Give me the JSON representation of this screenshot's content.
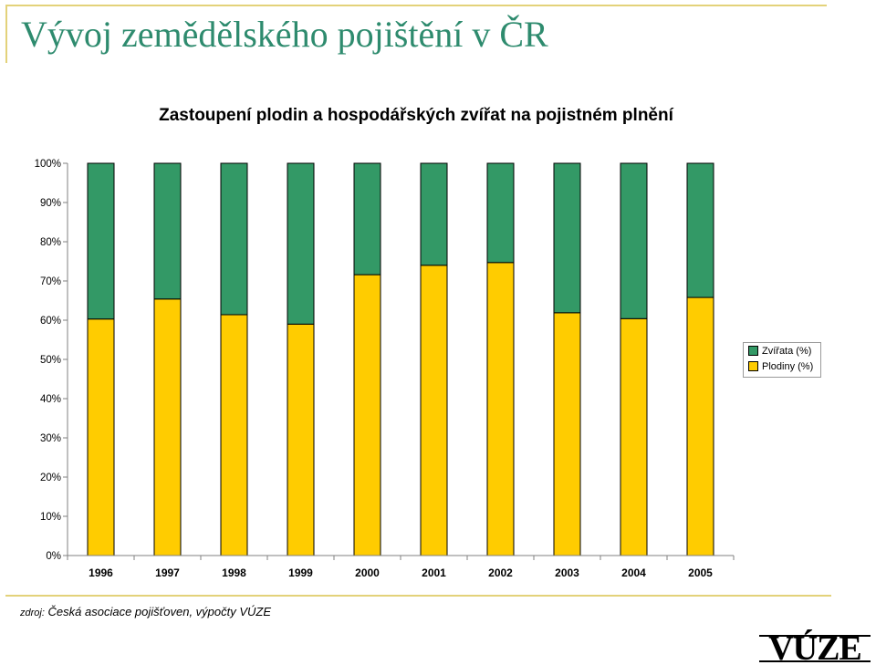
{
  "slide": {
    "title": "Vývoj zemědělského pojištění v ČR"
  },
  "source": {
    "label": "zdroj:",
    "text": "Česká asociace pojišťoven, výpočty VÚZE"
  },
  "logo": {
    "text": "VÚZE"
  },
  "colors": {
    "accent_rule": "#e3d27a",
    "title": "#2e8b6e",
    "zvirata": "#339966",
    "plodiny": "#ffcc00"
  },
  "chart_data": {
    "type": "bar",
    "stacked": true,
    "title": "Zastoupení plodin a hospodářských zvířat na pojistném plnění",
    "categories": [
      "1996",
      "1997",
      "1998",
      "1999",
      "2000",
      "2001",
      "2002",
      "2003",
      "2004",
      "2005"
    ],
    "y_ticks": [
      "0%",
      "10%",
      "20%",
      "30%",
      "40%",
      "50%",
      "60%",
      "70%",
      "80%",
      "90%",
      "100%"
    ],
    "ylim": [
      0,
      100
    ],
    "grid": false,
    "legend_position": "right",
    "series": [
      {
        "name": "Plodiny (%)",
        "color": "#ffcc00",
        "values": [
          60.3,
          65.4,
          61.4,
          59.0,
          71.6,
          74.0,
          74.7,
          61.9,
          60.4,
          65.8
        ]
      },
      {
        "name": "Zvířata (%)",
        "color": "#339966",
        "values": [
          39.7,
          34.6,
          38.6,
          41.0,
          28.4,
          26.0,
          25.3,
          38.1,
          39.6,
          34.2
        ]
      }
    ]
  }
}
